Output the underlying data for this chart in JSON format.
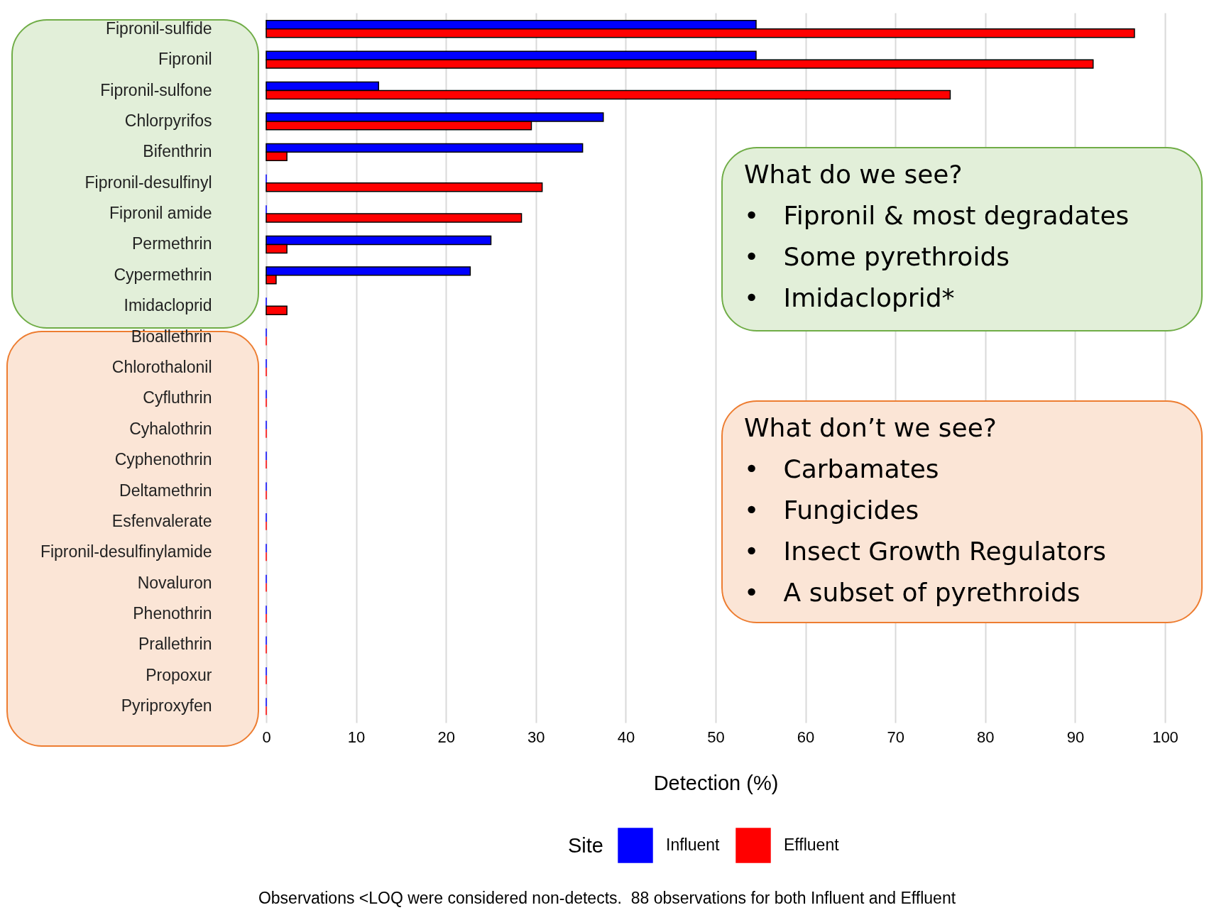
{
  "chart_data": {
    "type": "bar",
    "orientation": "horizontal",
    "xlabel": "Detection (%)",
    "legend_title": "Site",
    "legend": "bottom",
    "grid": "x",
    "categories": [
      "Fipronil-sulfide",
      "Fipronil",
      "Fipronil-sulfone",
      "Chlorpyrifos",
      "Bifenthrin",
      "Fipronil-desulfinyl",
      "Fipronil amide",
      "Permethrin",
      "Cypermethrin",
      "Imidacloprid",
      "Bioallethrin",
      "Chlorothalonil",
      "Cyfluthrin",
      "Cyhalothrin",
      "Cyphenothrin",
      "Deltamethrin",
      "Esfenvalerate",
      "Fipronil-desulfinylamide",
      "Novaluron",
      "Phenothrin",
      "Prallethrin",
      "Propoxur",
      "Pyriproxyfen"
    ],
    "series": [
      {
        "name": "Influent",
        "color": "#0000ff",
        "values": [
          54.5,
          54.5,
          12.5,
          37.5,
          35.2,
          0,
          0,
          25.0,
          22.7,
          0,
          0,
          0,
          0,
          0,
          0,
          0,
          0,
          0,
          0,
          0,
          0,
          0,
          0
        ]
      },
      {
        "name": "Effluent",
        "color": "#ff0000",
        "values": [
          96.6,
          92.0,
          76.1,
          29.5,
          2.3,
          30.7,
          28.4,
          2.3,
          1.1,
          2.3,
          0,
          0,
          0,
          0,
          0,
          0,
          0,
          0,
          0,
          0,
          0,
          0,
          0
        ]
      }
    ],
    "xlim": [
      0,
      100
    ],
    "xticks": [
      0,
      10,
      20,
      30,
      40,
      50,
      60,
      70,
      80,
      90,
      100
    ],
    "annotations": [
      "What do we see?\n•   Fipronil & most degradates\n•   Some pyrethroids\n•   Imidacloprid*",
      "What don’t we see?\n•   Carbamates\n•   Fungicides\n•   Insect Growth Regulators\n•   A subset of pyrethroids",
      "Observations <LOQ were considered non-detects.  88 observations for both Influent and Effluent"
    ]
  }
}
